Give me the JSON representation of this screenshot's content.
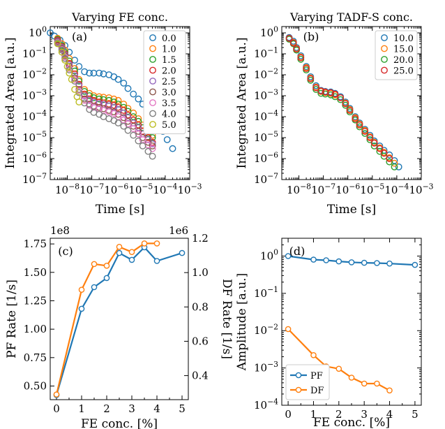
{
  "colors": {
    "c0": "#1f77b4",
    "c1": "#ff7f0e",
    "c2": "#2ca02c",
    "c3": "#d62728",
    "c4": "#9467bd",
    "c5": "#8c564b",
    "c6": "#e377c2",
    "c7": "#7f7f7f",
    "c8": "#bcbd22"
  },
  "chart_data": [
    {
      "type": "scatter",
      "panel": "(a)",
      "title": "Varying FE conc.",
      "xlabel": "Time [s]",
      "ylabel": "Integrated Area [a.u.]",
      "xscale": "log",
      "yscale": "log",
      "xlim": [
        2e-09,
        0.001
      ],
      "ylim": [
        1e-07,
        2
      ],
      "xticks": [
        "10^{-8}",
        "10^{-7}",
        "10^{-6}",
        "10^{-5}",
        "10^{-4}",
        "10^{-3}"
      ],
      "yticks": [
        "10^{0}",
        "10^{-1}",
        "10^{-2}",
        "10^{-3}",
        "10^{-4}",
        "10^{-5}",
        "10^{-6}",
        "10^{-7}"
      ],
      "legend": "top-right",
      "series": [
        {
          "name": "0.0",
          "color": "c0",
          "x": [
            2e-09,
            3e-09,
            5e-09,
            8e-09,
            1.2e-08,
            2e-08,
            3e-08,
            5e-08,
            8e-08,
            1.2e-07,
            2e-07,
            3e-07,
            5e-07,
            8e-07,
            1.2e-06,
            2e-06,
            3e-06,
            5e-06,
            8e-06,
            1.2e-05,
            2e-05,
            3e-05,
            5e-05,
            8e-05,
            0.00012,
            0.0002
          ],
          "y": [
            1.0,
            0.7,
            0.45,
            0.25,
            0.12,
            0.05,
            0.025,
            0.014,
            0.012,
            0.012,
            0.012,
            0.011,
            0.01,
            0.008,
            0.006,
            0.004,
            0.0022,
            0.0012,
            0.0007,
            0.0004,
            0.0002,
            0.0001,
            5e-05,
            2e-05,
            8e-06,
            3e-06
          ]
        },
        {
          "name": "1.0",
          "color": "c1",
          "x": [
            4e-09,
            6e-09,
            8e-09,
            1.2e-08,
            2e-08,
            3e-08,
            5e-08,
            8e-08,
            1.2e-07,
            2e-07,
            3e-07,
            5e-07,
            8e-07,
            1.2e-06,
            2e-06,
            3e-06,
            5e-06,
            8e-06,
            1.2e-05,
            2e-05,
            3e-05
          ],
          "y": [
            0.55,
            0.3,
            0.15,
            0.06,
            0.02,
            0.006,
            0.002,
            0.0013,
            0.001,
            0.0009,
            0.00085,
            0.0008,
            0.0007,
            0.0006,
            0.0004,
            0.00025,
            0.00015,
            8e-05,
            4e-05,
            2e-05,
            1.3e-05
          ]
        },
        {
          "name": "1.5",
          "color": "c2",
          "x": [
            4e-09,
            6e-09,
            8e-09,
            1.2e-08,
            2e-08,
            3e-08,
            5e-08,
            8e-08,
            1.2e-07,
            2e-07,
            3e-07,
            5e-07,
            8e-07,
            1.2e-06,
            2e-06,
            3e-06,
            5e-06,
            8e-06,
            1.2e-05,
            2e-05,
            3e-05
          ],
          "y": [
            0.5,
            0.25,
            0.12,
            0.045,
            0.015,
            0.005,
            0.0016,
            0.001,
            0.0008,
            0.0007,
            0.00065,
            0.0006,
            0.0005,
            0.0004,
            0.00028,
            0.00018,
            0.0001,
            6e-05,
            3e-05,
            1.6e-05,
            1e-05
          ]
        },
        {
          "name": "2.0",
          "color": "c3",
          "x": [
            4e-09,
            6e-09,
            8e-09,
            1.2e-08,
            2e-08,
            3e-08,
            5e-08,
            8e-08,
            1.2e-07,
            2e-07,
            3e-07,
            5e-07,
            8e-07,
            1.2e-06,
            2e-06,
            3e-06,
            5e-06,
            8e-06,
            1.2e-05,
            2e-05,
            3e-05
          ],
          "y": [
            0.45,
            0.22,
            0.1,
            0.035,
            0.011,
            0.0035,
            0.0012,
            0.0007,
            0.0006,
            0.0005,
            0.00045,
            0.0004,
            0.00035,
            0.00028,
            0.0002,
            0.00012,
            7e-05,
            4e-05,
            2e-05,
            1e-05,
            6e-06
          ]
        },
        {
          "name": "2.5",
          "color": "c4",
          "x": [
            4e-09,
            6e-09,
            8e-09,
            1.2e-08,
            2e-08,
            3e-08,
            5e-08,
            8e-08,
            1.2e-07,
            2e-07,
            3e-07,
            5e-07,
            8e-07,
            1.2e-06,
            2e-06,
            3e-06,
            5e-06,
            8e-06,
            1.2e-05,
            2e-05,
            3e-05
          ],
          "y": [
            0.4,
            0.2,
            0.09,
            0.03,
            0.009,
            0.003,
            0.001,
            0.0006,
            0.0005,
            0.00042,
            0.00038,
            0.00033,
            0.00028,
            0.00022,
            0.00015,
            9e-05,
            5e-05,
            3e-05,
            1.5e-05,
            8e-06,
            5e-06
          ]
        },
        {
          "name": "3.0",
          "color": "c5",
          "x": [
            4e-09,
            6e-09,
            8e-09,
            1.2e-08,
            2e-08,
            3e-08,
            5e-08,
            8e-08,
            1.2e-07,
            2e-07,
            3e-07,
            5e-07,
            8e-07,
            1.2e-06,
            2e-06,
            3e-06,
            5e-06,
            8e-06,
            1.2e-05,
            2e-05,
            3e-05
          ],
          "y": [
            0.38,
            0.18,
            0.08,
            0.025,
            0.007,
            0.002,
            0.0007,
            0.0004,
            0.00032,
            0.00028,
            0.00024,
            0.0002,
            0.00017,
            0.00013,
            9e-05,
            6e-05,
            3.5e-05,
            2e-05,
            1e-05,
            6e-06,
            4e-06
          ]
        },
        {
          "name": "3.5",
          "color": "c6",
          "x": [
            4e-09,
            6e-09,
            8e-09,
            1.2e-08,
            2e-08,
            3e-08,
            5e-08,
            8e-08,
            1.2e-07,
            2e-07,
            3e-07,
            5e-07,
            8e-07,
            1.2e-06,
            2e-06,
            3e-06,
            5e-06,
            8e-06,
            1.2e-05,
            2e-05,
            3e-05
          ],
          "y": [
            0.35,
            0.16,
            0.07,
            0.02,
            0.006,
            0.0017,
            0.0006,
            0.00035,
            0.00028,
            0.00024,
            0.0002,
            0.00017,
            0.00014,
            0.0001,
            7e-05,
            4.5e-05,
            2.7e-05,
            1.5e-05,
            8e-06,
            4.5e-06,
            3e-06
          ]
        },
        {
          "name": "4.0",
          "color": "c7",
          "x": [
            4e-09,
            6e-09,
            8e-09,
            1.2e-08,
            2e-08,
            3e-08,
            5e-08,
            8e-08,
            1.2e-07,
            2e-07,
            3e-07,
            5e-07,
            8e-07,
            1.2e-06,
            2e-06,
            3e-06,
            5e-06,
            8e-06,
            1.2e-05,
            2e-05,
            3e-05
          ],
          "y": [
            0.33,
            0.15,
            0.06,
            0.017,
            0.005,
            0.0014,
            0.00045,
            0.00022,
            0.00016,
            0.00013,
            0.0001,
            8e-05,
            6.5e-05,
            5e-05,
            3.5e-05,
            2.2e-05,
            1.3e-05,
            7e-06,
            4e-06,
            2.2e-06,
            1.3e-06
          ]
        },
        {
          "name": "5.0",
          "color": "c8",
          "x": [
            4e-09,
            6e-09,
            8e-09,
            1e-08,
            1.2e-08,
            1.5e-08,
            2e-08,
            2.5e-08,
            3e-08
          ],
          "y": [
            0.3,
            0.12,
            0.05,
            0.025,
            0.012,
            0.006,
            0.002,
            0.0009,
            0.0005
          ]
        }
      ]
    },
    {
      "type": "scatter",
      "panel": "(b)",
      "title": "Varying TADF-S conc.",
      "xlabel": "Time [s]",
      "ylabel": "Integrated Area [a.u.]",
      "xscale": "log",
      "yscale": "log",
      "xlim": [
        2e-09,
        0.001
      ],
      "ylim": [
        1e-07,
        2
      ],
      "xticks": [
        "10^{-8}",
        "10^{-7}",
        "10^{-6}",
        "10^{-5}",
        "10^{-4}",
        "10^{-3}"
      ],
      "yticks": [
        "10^{0}",
        "10^{-1}",
        "10^{-2}",
        "10^{-3}",
        "10^{-4}",
        "10^{-5}",
        "10^{-6}",
        "10^{-7}"
      ],
      "legend": "top-right",
      "series": [
        {
          "name": "10.0",
          "color": "c0",
          "x": [
            4e-09,
            6e-09,
            8e-09,
            1.2e-08,
            2e-08,
            3e-08,
            5e-08,
            8e-08,
            1.2e-07,
            2e-07,
            3e-07,
            5e-07,
            8e-07,
            1.2e-06,
            2e-06,
            3e-06,
            5e-06,
            8e-06,
            1.2e-05,
            2e-05,
            3e-05,
            5e-05,
            8e-05,
            0.00012
          ],
          "y": [
            0.6,
            0.4,
            0.2,
            0.08,
            0.025,
            0.008,
            0.003,
            0.0018,
            0.0016,
            0.0015,
            0.0013,
            0.0009,
            0.0005,
            0.00025,
            0.0001,
            5e-05,
            2.5e-05,
            1.3e-05,
            7e-06,
            4e-06,
            2.5e-06,
            1.5e-06,
            8e-07,
            4e-07
          ]
        },
        {
          "name": "15.0",
          "color": "c1",
          "x": [
            4e-09,
            6e-09,
            8e-09,
            1.2e-08,
            2e-08,
            3e-08,
            5e-08,
            8e-08,
            1.2e-07,
            2e-07,
            3e-07,
            5e-07,
            8e-07,
            1.2e-06,
            2e-06,
            3e-06,
            5e-06,
            8e-06,
            1.2e-05,
            2e-05,
            3e-05,
            5e-05,
            8e-05
          ],
          "y": [
            0.55,
            0.35,
            0.18,
            0.07,
            0.022,
            0.007,
            0.0026,
            0.0016,
            0.0014,
            0.0013,
            0.0011,
            0.0008,
            0.00045,
            0.00022,
            9e-05,
            4.5e-05,
            2.2e-05,
            1.1e-05,
            6e-06,
            3.3e-06,
            2e-06,
            1.1e-06,
            6e-07
          ]
        },
        {
          "name": "20.0",
          "color": "c2",
          "x": [
            4e-09,
            6e-09,
            8e-09,
            1.2e-08,
            2e-08,
            3e-08,
            5e-08,
            8e-08,
            1.2e-07,
            2e-07,
            3e-07,
            5e-07,
            8e-07,
            1.2e-06,
            2e-06,
            3e-06,
            5e-06,
            8e-06,
            1.2e-05,
            2e-05,
            3e-05,
            5e-05,
            8e-05
          ],
          "y": [
            0.5,
            0.3,
            0.15,
            0.055,
            0.017,
            0.0055,
            0.002,
            0.0013,
            0.0012,
            0.0011,
            0.0009,
            0.00065,
            0.00035,
            0.00017,
            7e-05,
            3.3e-05,
            1.6e-05,
            8e-06,
            4e-06,
            2.2e-06,
            1.3e-06,
            7e-07,
            4e-07
          ]
        },
        {
          "name": "25.0",
          "color": "c3",
          "x": [
            4e-09,
            6e-09,
            8e-09,
            1.2e-08,
            2e-08,
            3e-08,
            5e-08,
            8e-08,
            1.2e-07,
            2e-07,
            3e-07,
            5e-07,
            8e-07,
            1.2e-06,
            2e-06,
            3e-06,
            5e-06,
            8e-06,
            1.2e-05,
            2e-05,
            3e-05,
            5e-05
          ],
          "y": [
            0.55,
            0.33,
            0.17,
            0.065,
            0.02,
            0.0065,
            0.0024,
            0.0017,
            0.0015,
            0.0014,
            0.0012,
            0.0008,
            0.00042,
            0.0002,
            8e-05,
            4e-05,
            2e-05,
            1e-05,
            5.5e-06,
            3e-06,
            1.8e-06,
            1e-06
          ]
        }
      ]
    },
    {
      "type": "line",
      "panel": "(c)",
      "xlabel": "FE conc. [%]",
      "xlim": [
        -0.25,
        5.25
      ],
      "xticks": [
        "0",
        "1",
        "2",
        "3",
        "4",
        "5"
      ],
      "series": [
        {
          "name": "PF Rate",
          "axis": "left",
          "color": "c0",
          "ylabel": "PF Rate [1/s]",
          "ylim": [
            0.38,
            1.8
          ],
          "multiplier": "1e8",
          "yticks": [
            "0.50",
            "0.75",
            "1.00",
            "1.25",
            "1.50",
            "1.75"
          ],
          "x": [
            0,
            1,
            1.5,
            2,
            2.5,
            3,
            3.5,
            4,
            5
          ],
          "y": [
            0.42,
            1.18,
            1.37,
            1.45,
            1.67,
            1.61,
            1.72,
            1.6,
            1.67
          ]
        },
        {
          "name": "DF Rate",
          "axis": "right",
          "color": "c1",
          "ylabel": "DF Rate [1/s]",
          "ylim": [
            0.26,
            1.2
          ],
          "multiplier": "1e6",
          "yticks": [
            "0.4",
            "0.6",
            "0.8",
            "1.0",
            "1.2"
          ],
          "x": [
            0,
            1,
            1.5,
            2,
            2.5,
            3,
            3.5,
            4
          ],
          "y": [
            0.29,
            0.9,
            1.05,
            1.04,
            1.15,
            1.12,
            1.17,
            1.17
          ]
        }
      ]
    },
    {
      "type": "line",
      "panel": "(d)",
      "xlabel": "FE conc. [%]",
      "ylabel": "Amplitude [a.u.]",
      "xlim": [
        -0.25,
        5.25
      ],
      "xticks": [
        "0",
        "1",
        "2",
        "3",
        "4",
        "5"
      ],
      "yscale": "log",
      "ylim": [
        0.0001,
        3
      ],
      "yticks": [
        "10^{0}",
        "10^{-1}",
        "10^{-2}",
        "10^{-3}",
        "10^{-4}"
      ],
      "legend": "lower-left",
      "series": [
        {
          "name": "PF",
          "color": "c0",
          "x": [
            0,
            1,
            1.5,
            2,
            2.5,
            3,
            3.5,
            4,
            5
          ],
          "y": [
            1.0,
            0.8,
            0.77,
            0.72,
            0.68,
            0.66,
            0.65,
            0.63,
            0.58
          ]
        },
        {
          "name": "DF",
          "color": "c1",
          "x": [
            0,
            1,
            1.5,
            2,
            2.5,
            3,
            3.5,
            4
          ],
          "y": [
            0.011,
            0.0022,
            0.0011,
            0.00095,
            0.00055,
            0.00038,
            0.00038,
            0.00025
          ]
        }
      ]
    }
  ]
}
